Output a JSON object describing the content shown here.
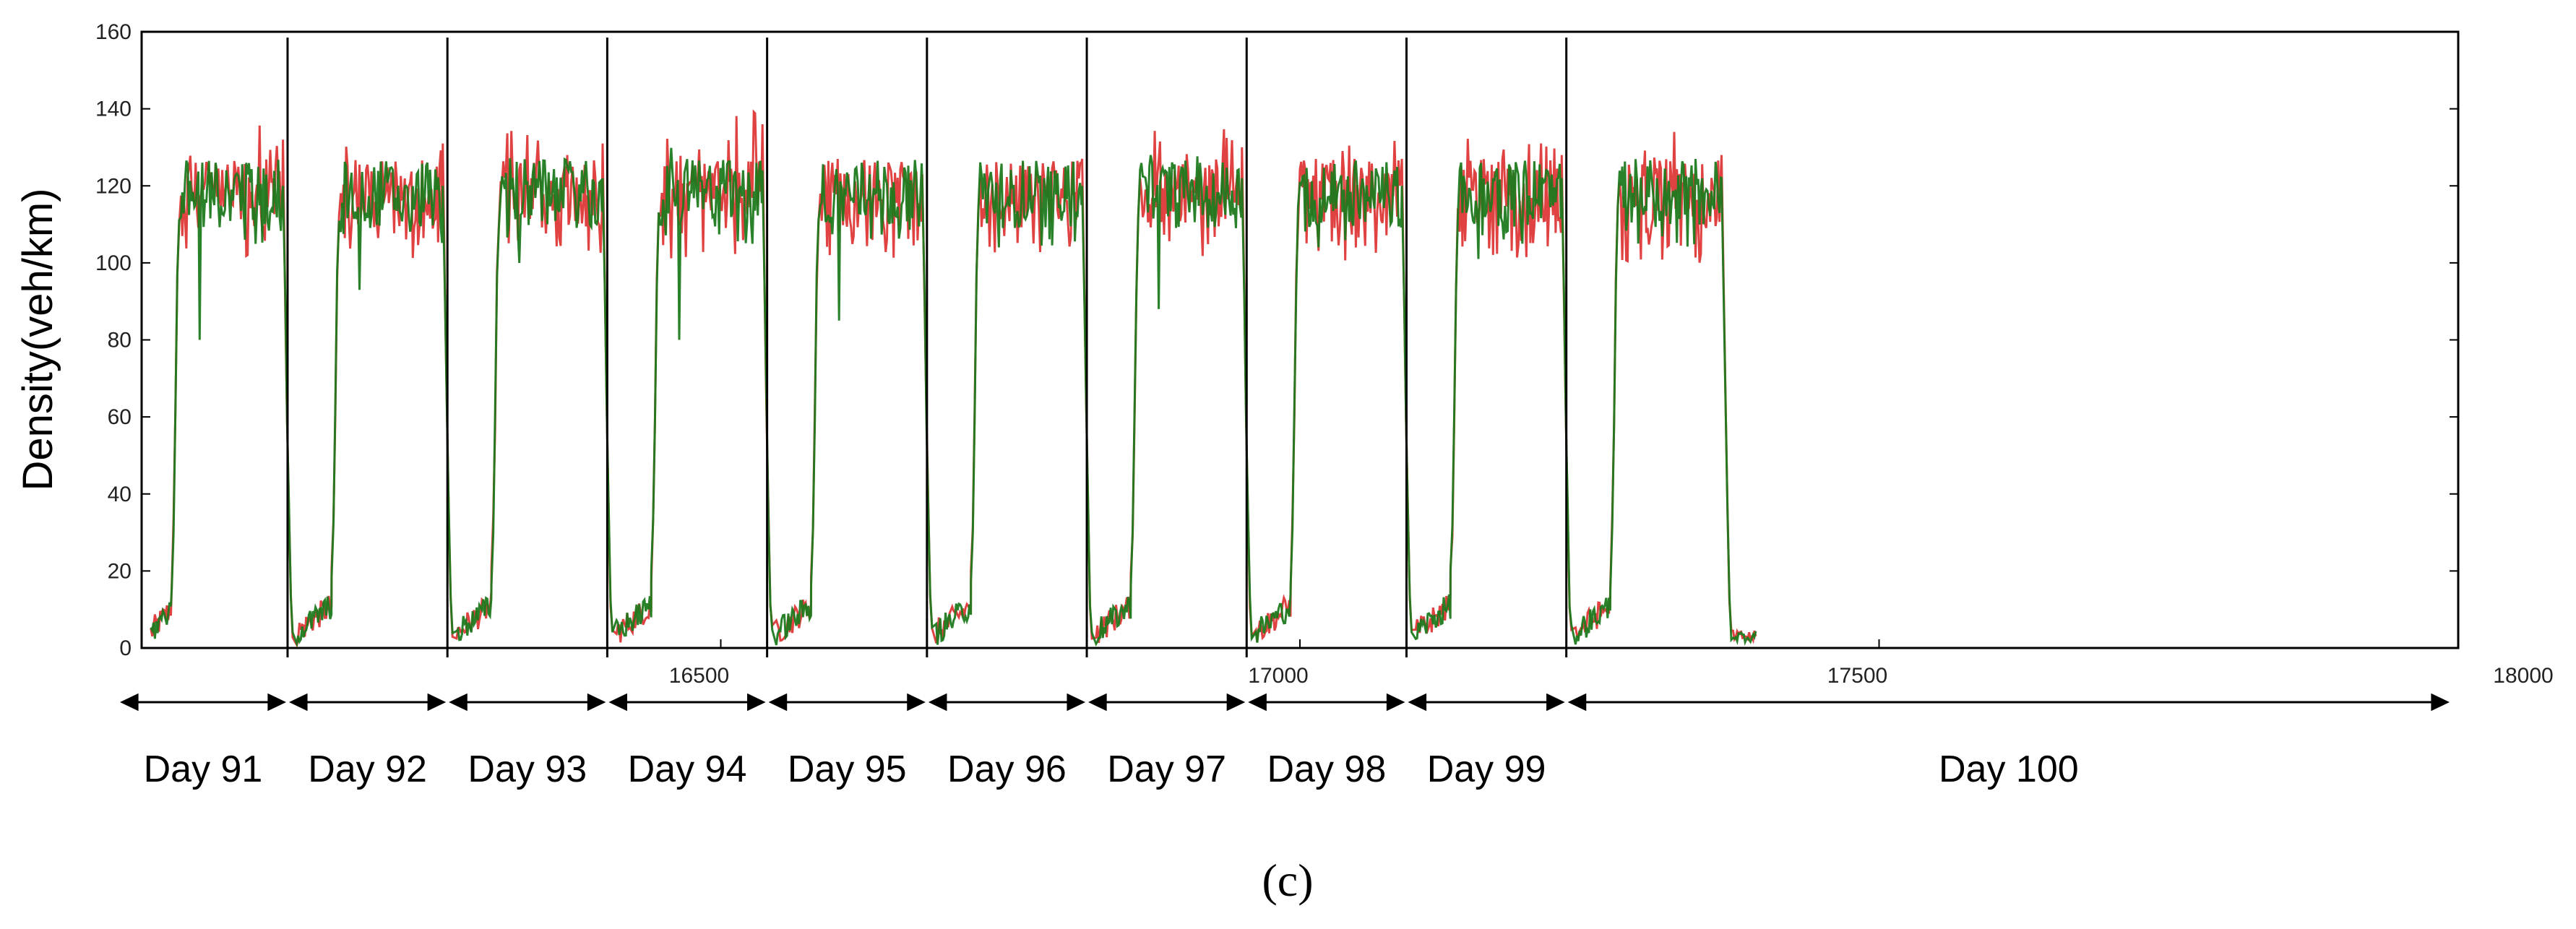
{
  "chart_data": {
    "type": "line",
    "ylabel": "Density(veh/km)",
    "xlabel": "",
    "title": "",
    "ylim": [
      0,
      160
    ],
    "xlim": [
      16000,
      18000
    ],
    "y_ticks": [
      0,
      20,
      40,
      60,
      80,
      100,
      120,
      140,
      160
    ],
    "x_ticks": [
      16500,
      17000,
      17500,
      18000
    ],
    "series": [
      {
        "name": "series-red",
        "color": "#dd2e2e"
      },
      {
        "name": "series-green",
        "color": "#1e7a1e"
      }
    ],
    "days": [
      {
        "label": "Day 91",
        "rise": 16030,
        "fall": 16126,
        "max_red": 138,
        "max_green": 126,
        "dip_green": 80
      },
      {
        "label": "Day 92",
        "rise": 16168,
        "fall": 16264,
        "max_red": 137,
        "max_green": 126,
        "dip_green": 93
      },
      {
        "label": "Day 93",
        "rise": 16306,
        "fall": 16402,
        "max_red": 137,
        "max_green": 128,
        "dip_green": 100
      },
      {
        "label": "Day 94",
        "rise": 16444,
        "fall": 16540,
        "max_red": 142,
        "max_green": 130,
        "dip_green": 80
      },
      {
        "label": "Day 95",
        "rise": 16582,
        "fall": 16678,
        "max_red": 129,
        "max_green": 127,
        "dip_green": 85
      },
      {
        "label": "Day 96",
        "rise": 16720,
        "fall": 16816,
        "max_red": 133,
        "max_green": 126,
        "dip_green": 104
      },
      {
        "label": "Day 97",
        "rise": 16858,
        "fall": 16954,
        "max_red": 136,
        "max_green": 128,
        "dip_green": 88
      },
      {
        "label": "Day 98",
        "rise": 16996,
        "fall": 17092,
        "max_red": 133,
        "max_green": 126,
        "dip_green": 104
      },
      {
        "label": "Day 99",
        "rise": 17134,
        "fall": 17230,
        "max_red": 134,
        "max_green": 128,
        "dip_green": 101
      },
      {
        "label": "Day 100",
        "rise": 17272,
        "fall": 17368,
        "max_red": 134,
        "max_green": 128,
        "dip_green": 105
      }
    ],
    "day_separators": [
      16126,
      16264,
      16402,
      16540,
      16678,
      16816,
      16954,
      17092,
      17230
    ]
  },
  "caption": "(c)"
}
